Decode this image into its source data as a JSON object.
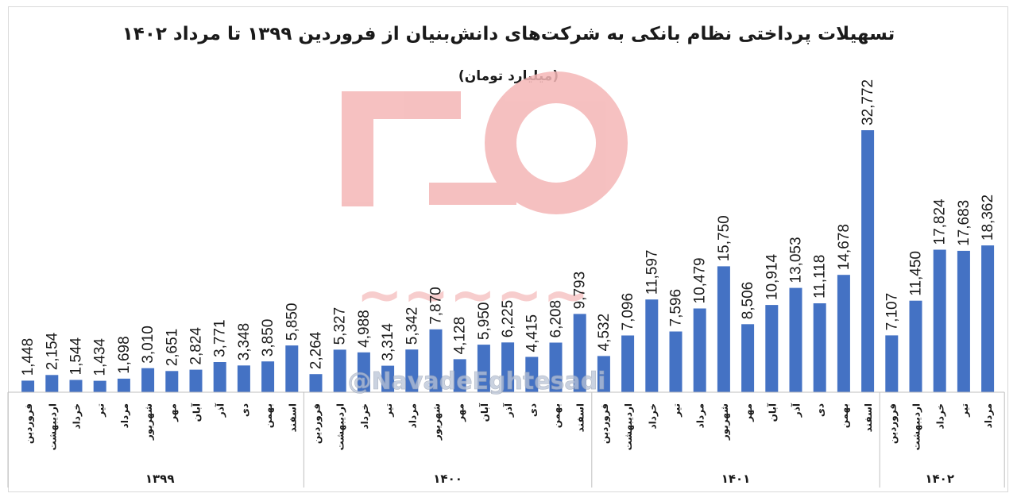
{
  "chart_data": {
    "type": "bar",
    "title": "تسهیلات پرداختی نظام بانکی به شرکت‌های دانش‌بنیان از فروردین ۱۳۹۹ تا مرداد ۱۴۰۲",
    "subtitle": "(میلیارد تومان)",
    "watermark": "@NavadeEghtesadi",
    "bar_color": "#4472c4",
    "groups": [
      {
        "year": "۱۳۹۹",
        "categories": [
          "فروردین",
          "اردیبهشت",
          "خرداد",
          "تیر",
          "مرداد",
          "شهریور",
          "مهر",
          "آبان",
          "آذر",
          "دی",
          "بهمن",
          "اسفند"
        ],
        "values": [
          1448,
          2154,
          1544,
          1434,
          1698,
          3010,
          2651,
          2824,
          3771,
          3348,
          3850,
          5850
        ],
        "labels": [
          "1,448",
          "2,154",
          "1,544",
          "1,434",
          "1,698",
          "3,010",
          "2,651",
          "2,824",
          "3,771",
          "3,348",
          "3,850",
          "5,850"
        ]
      },
      {
        "year": "۱۴۰۰",
        "categories": [
          "فروردین",
          "اردیبهشت",
          "خرداد",
          "تیر",
          "مرداد",
          "شهریور",
          "مهر",
          "آبان",
          "آذر",
          "دی",
          "بهمن",
          "اسفند"
        ],
        "values": [
          2264,
          5327,
          4988,
          3314,
          5342,
          7870,
          4128,
          5950,
          6225,
          4415,
          6208,
          9793
        ],
        "labels": [
          "2,264",
          "5,327",
          "4,988",
          "3,314",
          "5,342",
          "7,870",
          "4,128",
          "5,950",
          "6,225",
          "4,415",
          "6,208",
          "9,793"
        ]
      },
      {
        "year": "۱۴۰۱",
        "categories": [
          "فروردین",
          "اردیبهشت",
          "خرداد",
          "تیر",
          "مرداد",
          "شهریور",
          "مهر",
          "آبان",
          "آذر",
          "دی",
          "بهمن",
          "اسفند"
        ],
        "values": [
          4532,
          7096,
          11597,
          7596,
          10479,
          15750,
          8506,
          10914,
          13053,
          11118,
          14678,
          32772
        ],
        "labels": [
          "4,532",
          "7,096",
          "11,597",
          "7,596",
          "10,479",
          "15,750",
          "8,506",
          "10,914",
          "13,053",
          "11,118",
          "14,678",
          "32,772"
        ]
      },
      {
        "year": "۱۴۰۲",
        "categories": [
          "فروردین",
          "اردیبهشت",
          "خرداد",
          "تیر",
          "مرداد"
        ],
        "values": [
          7107,
          11450,
          17824,
          17683,
          18362
        ],
        "labels": [
          "7,107",
          "11,450",
          "17,824",
          "17,683",
          "18,362"
        ]
      }
    ]
  }
}
